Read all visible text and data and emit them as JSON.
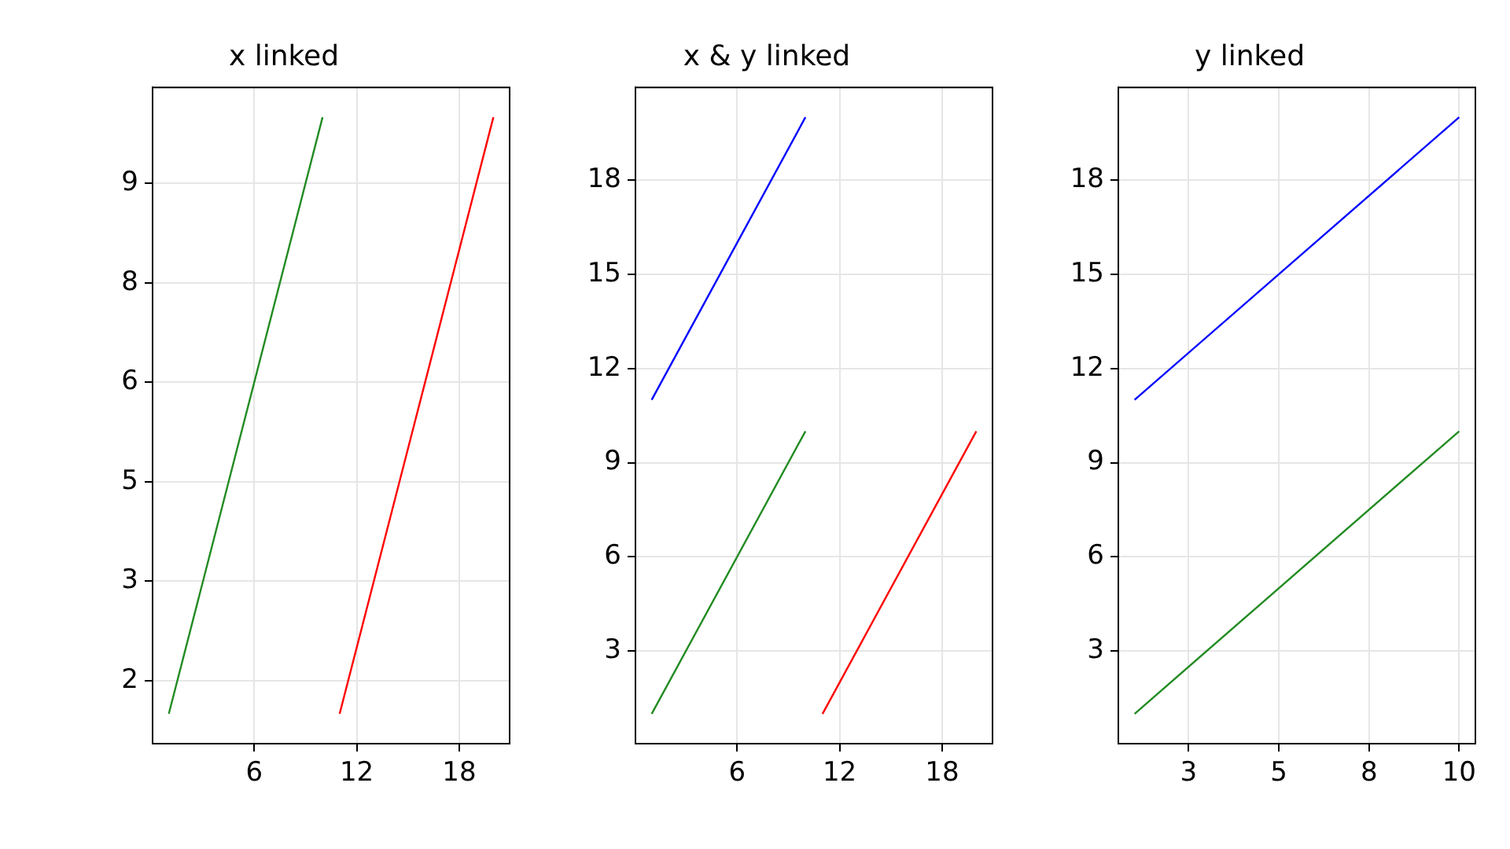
{
  "chart_data": [
    {
      "type": "line",
      "title": "x linked",
      "xlim": [
        0.05,
        20.95
      ],
      "ylim": [
        0.55,
        10.45
      ],
      "xticks": [
        6,
        12,
        18
      ],
      "yticks": [
        {
          "value": 1.5,
          "label": "2"
        },
        {
          "value": 3,
          "label": "3"
        },
        {
          "value": 4.5,
          "label": "5"
        },
        {
          "value": 6,
          "label": "6"
        },
        {
          "value": 7.5,
          "label": "8"
        },
        {
          "value": 9,
          "label": "9"
        }
      ],
      "grid": true,
      "legend": false,
      "marker": "none",
      "line_style": "solid",
      "series": [
        {
          "color": "#228b22",
          "x": [
            1,
            10
          ],
          "values": [
            1,
            10
          ]
        },
        {
          "color": "#ff0000",
          "x": [
            11,
            20
          ],
          "values": [
            1,
            10
          ]
        }
      ]
    },
    {
      "type": "line",
      "title": "x & y linked",
      "xlim": [
        0.05,
        20.95
      ],
      "ylim": [
        0.05,
        20.95
      ],
      "xticks": [
        6,
        12,
        18
      ],
      "yticks": [
        3,
        6,
        9,
        12,
        15,
        18
      ],
      "grid": true,
      "legend": false,
      "marker": "none",
      "line_style": "solid",
      "series": [
        {
          "color": "#0000ff",
          "x": [
            1,
            10
          ],
          "values": [
            11,
            20
          ]
        },
        {
          "color": "#228b22",
          "x": [
            1,
            10
          ],
          "values": [
            1,
            10
          ]
        },
        {
          "color": "#ff0000",
          "x": [
            11,
            20
          ],
          "values": [
            1,
            10
          ]
        }
      ]
    },
    {
      "type": "line",
      "title": "y linked",
      "xlim": [
        0.55,
        10.45
      ],
      "ylim": [
        0.05,
        20.95
      ],
      "xticks": [
        {
          "value": 2.5,
          "label": "3"
        },
        {
          "value": 5,
          "label": "5"
        },
        {
          "value": 7.5,
          "label": "8"
        },
        {
          "value": 10,
          "label": "10"
        }
      ],
      "yticks": [
        3,
        6,
        9,
        12,
        15,
        18
      ],
      "grid": true,
      "legend": false,
      "marker": "none",
      "line_style": "solid",
      "series": [
        {
          "color": "#0000ff",
          "x": [
            1,
            10
          ],
          "values": [
            11,
            20
          ]
        },
        {
          "color": "#228b22",
          "x": [
            1,
            10
          ],
          "values": [
            1,
            10
          ]
        }
      ]
    }
  ]
}
